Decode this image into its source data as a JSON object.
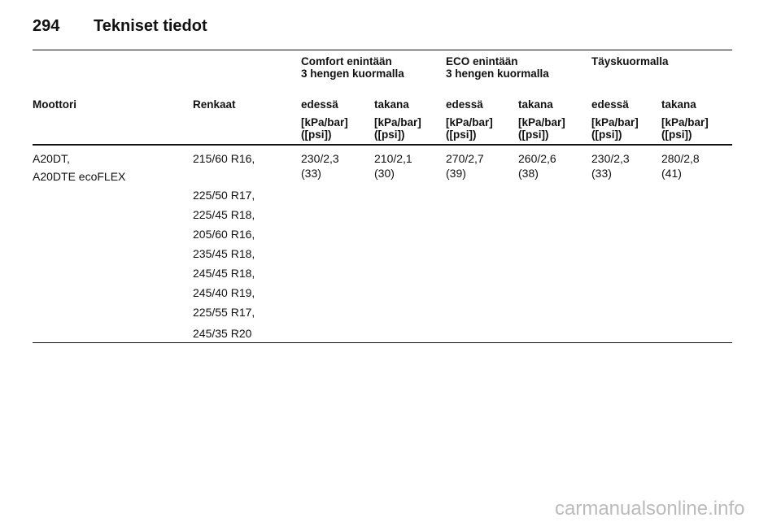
{
  "header": {
    "page_number": "294",
    "title": "Tekniset tiedot"
  },
  "table": {
    "group_headers": [
      {
        "line1": "Comfort enintään",
        "line2": "3 hengen kuormalla"
      },
      {
        "line1": "ECO enintään",
        "line2": "3 hengen kuormalla"
      },
      {
        "line1": "Täyskuormalla"
      }
    ],
    "columns": [
      "Moottori",
      "Renkaat",
      "edessä",
      "takana",
      "edessä",
      "takana",
      "edessä",
      "takana"
    ],
    "units": [
      {
        "pressure": "[kPa/bar]",
        "psi": "([psi])"
      },
      {
        "pressure": "[kPa/bar]",
        "psi": "([psi])"
      },
      {
        "pressure": "[kPa/bar]",
        "psi": "([psi])"
      },
      {
        "pressure": "[kPa/bar]",
        "psi": "([psi])"
      },
      {
        "pressure": "[kPa/bar]",
        "psi": "([psi])"
      },
      {
        "pressure": "[kPa/bar]",
        "psi": "([psi])"
      }
    ],
    "rows": [
      {
        "engines": [
          "A20DT,",
          "A20DTE ecoFLEX"
        ],
        "tires": [
          "215/60 R16,",
          "225/50 R17,",
          "225/45 R18,",
          "205/60 R16,",
          "235/45 R18,",
          "245/45 R18,",
          "245/40 R19,",
          "225/55 R17,",
          "245/35 R20"
        ],
        "pressures": [
          {
            "kpa_bar": "230/2,3",
            "psi": "(33)"
          },
          {
            "kpa_bar": "210/2,1",
            "psi": "(30)"
          },
          {
            "kpa_bar": "270/2,7",
            "psi": "(39)"
          },
          {
            "kpa_bar": "260/2,6",
            "psi": "(38)"
          },
          {
            "kpa_bar": "230/2,3",
            "psi": "(33)"
          },
          {
            "kpa_bar": "280/2,8",
            "psi": "(41)"
          }
        ]
      }
    ]
  },
  "watermark": "carmanualsonline.info"
}
